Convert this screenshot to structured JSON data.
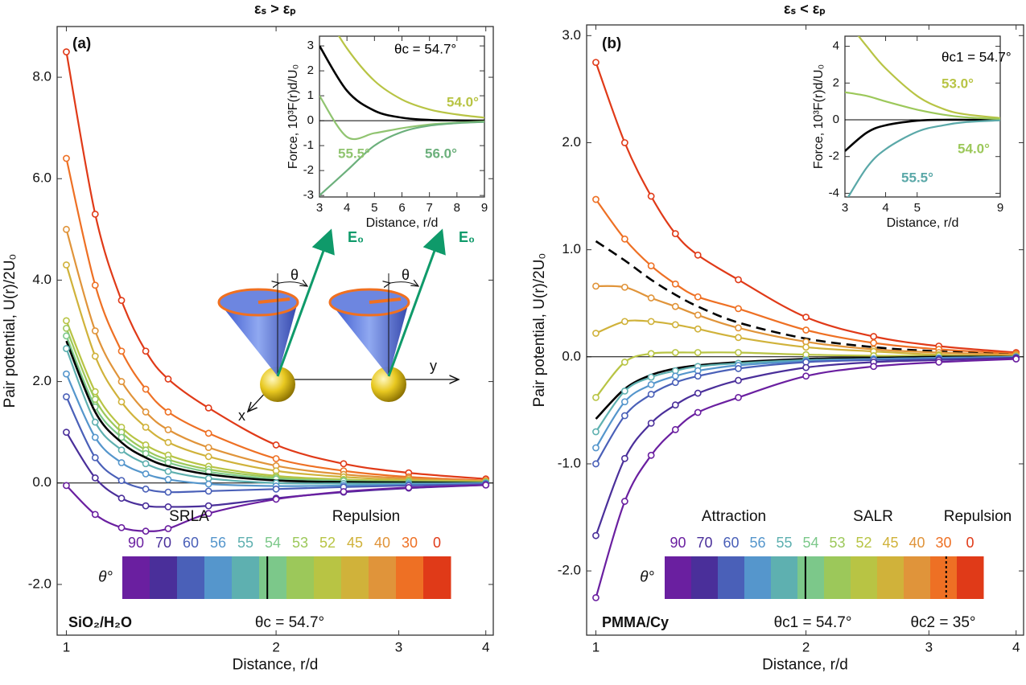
{
  "chart_data": [
    {
      "type": "line",
      "title": "εₛ > εₚ",
      "panel": "(a)",
      "xlabel": "Distance, r/d",
      "ylabel": "Pair potential, U(r)/2U₀",
      "xscale": "log",
      "xlim": [
        0.97,
        4.1
      ],
      "xticks": [
        1,
        2,
        3,
        4
      ],
      "ylim": [
        -3,
        9
      ],
      "yticks": [
        {
          "value": -2,
          "label": "-2.0"
        },
        {
          "value": 0,
          "label": "0.0"
        },
        {
          "value": 2,
          "label": "2.0"
        },
        {
          "value": 4,
          "label": "4.0"
        },
        {
          "value": 6,
          "label": "6.0"
        },
        {
          "value": 8,
          "label": "8.0"
        }
      ],
      "zero_line": true,
      "x": [
        1,
        1.1,
        1.2,
        1.3,
        1.4,
        1.6,
        2,
        2.5,
        3.1,
        4
      ],
      "series": [
        {
          "color": "#e03a18",
          "marker": true,
          "values": [
            8.5,
            5.3,
            3.6,
            2.6,
            2.05,
            1.48,
            0.75,
            0.38,
            0.2,
            0.08
          ]
        },
        {
          "color": "#ee7024",
          "marker": true,
          "values": [
            6.4,
            3.9,
            2.6,
            1.85,
            1.4,
            0.98,
            0.48,
            0.24,
            0.12,
            0.05
          ]
        },
        {
          "color": "#e0943a",
          "marker": true,
          "values": [
            5.0,
            3.0,
            2.0,
            1.4,
            1.05,
            0.7,
            0.34,
            0.17,
            0.09,
            0.04
          ]
        },
        {
          "color": "#d0b23a",
          "marker": true,
          "values": [
            4.3,
            2.5,
            1.6,
            1.1,
            0.8,
            0.52,
            0.24,
            0.12,
            0.06,
            0.03
          ]
        },
        {
          "color": "#b8c444",
          "marker": true,
          "values": [
            3.2,
            1.8,
            1.1,
            0.75,
            0.55,
            0.33,
            0.14,
            0.07,
            0.04,
            0.02
          ]
        },
        {
          "color": "#9cc85a",
          "marker": true,
          "values": [
            3.05,
            1.65,
            1.0,
            0.65,
            0.46,
            0.27,
            0.11,
            0.05,
            0.03,
            0.01
          ]
        },
        {
          "color": "#7cc88a",
          "marker": true,
          "values": [
            2.9,
            1.5,
            0.9,
            0.58,
            0.4,
            0.22,
            0.08,
            0.04,
            0.02,
            0.01
          ]
        },
        {
          "color": "#000000",
          "marker": false,
          "values": [
            2.8,
            1.4,
            0.8,
            0.5,
            0.33,
            0.17,
            0.05,
            0.02,
            0.01,
            0
          ]
        },
        {
          "color": "#5eb0b0",
          "marker": true,
          "values": [
            2.65,
            1.2,
            0.65,
            0.38,
            0.23,
            0.09,
            0.0,
            -0.01,
            -0.01,
            0
          ]
        },
        {
          "color": "#5596cc",
          "marker": true,
          "values": [
            2.15,
            0.9,
            0.4,
            0.18,
            0.07,
            -0.02,
            -0.06,
            -0.05,
            -0.03,
            -0.01
          ]
        },
        {
          "color": "#4a60b8",
          "marker": true,
          "values": [
            1.7,
            0.5,
            0.05,
            -0.12,
            -0.18,
            -0.16,
            -0.12,
            -0.08,
            -0.05,
            -0.02
          ]
        },
        {
          "color": "#4a2f9a",
          "marker": true,
          "values": [
            1.0,
            0.1,
            -0.3,
            -0.45,
            -0.47,
            -0.45,
            -0.3,
            -0.18,
            -0.1,
            -0.04
          ]
        },
        {
          "color": "#6a1fa0",
          "marker": true,
          "values": [
            -0.05,
            -0.62,
            -0.88,
            -0.95,
            -0.9,
            -0.6,
            -0.32,
            -0.17,
            -0.09,
            -0.04
          ]
        }
      ],
      "inset": {
        "type": "line",
        "xlabel": "Distance, r/d",
        "ylabel": "Force, 10³F(r)d/U₀",
        "xscale": "linear",
        "xlim": [
          3,
          9
        ],
        "xticks": [
          3,
          4,
          5,
          6,
          7,
          8,
          9
        ],
        "ylim": [
          -3.06,
          3.39
        ],
        "yticks": [
          -3,
          -2,
          -1,
          0,
          1,
          2,
          3
        ],
        "zero_line": true,
        "x": [
          3,
          4,
          5,
          6,
          7,
          8,
          9
        ],
        "series": [
          {
            "name": "θc = 54.7°",
            "color": "#000000",
            "values": [
              3.0,
              1.2,
              0.4,
              0.12,
              0.03,
              0.01,
              0
            ]
          },
          {
            "name": "54.0°",
            "color": "#b8c444",
            "values": [
              4.7,
              2.9,
              1.6,
              0.85,
              0.45,
              0.25,
              0.12
            ]
          },
          {
            "name": "55.5°",
            "color": "#90c470",
            "values": [
              1.0,
              -0.65,
              -0.5,
              -0.3,
              -0.15,
              -0.08,
              -0.03
            ]
          },
          {
            "name": "56.0°",
            "color": "#6cb07c",
            "values": [
              -3.0,
              -2.0,
              -1.0,
              -0.45,
              -0.2,
              -0.1,
              -0.05
            ]
          }
        ]
      },
      "colorbar": {
        "symbol": "θ°",
        "labels": [
          "90",
          "70",
          "60",
          "56",
          "55",
          "54",
          "53",
          "52",
          "45",
          "40",
          "30",
          "0"
        ],
        "colors": [
          "#6a1fa0",
          "#4a2f9a",
          "#4a60b8",
          "#5596cc",
          "#5eb0b0",
          "#7cc88a",
          "#9cc85a",
          "#b8c444",
          "#d0b23a",
          "#e0943a",
          "#ee7024",
          "#e03a18"
        ],
        "regions": [
          "SRLA",
          "Repulsion"
        ],
        "critical": [
          "θc = 54.7°"
        ]
      },
      "material": "SiO₂/H₂O",
      "annotations": [
        "θ",
        "E₀",
        "θ",
        "E₀",
        "y",
        "x"
      ]
    },
    {
      "type": "line",
      "title": "εₛ < εₚ",
      "panel": "(b)",
      "xlabel": "Distance, r/d",
      "ylabel": "Pair potential, U(r)/2U₀",
      "xscale": "log",
      "xlim": [
        0.97,
        4.1
      ],
      "xticks": [
        1,
        2,
        3,
        4
      ],
      "ylim": [
        -2.6,
        3.1
      ],
      "yticks": [
        {
          "value": -2,
          "label": "-2.0"
        },
        {
          "value": -1,
          "label": "-1.0"
        },
        {
          "value": 0,
          "label": "0.0"
        },
        {
          "value": 1,
          "label": "1.0"
        },
        {
          "value": 2,
          "label": "2.0"
        },
        {
          "value": 3,
          "label": "3.0"
        }
      ],
      "zero_line": true,
      "x": [
        1,
        1.1,
        1.2,
        1.3,
        1.4,
        1.6,
        2,
        2.5,
        3.1,
        4
      ],
      "series": [
        {
          "color": "#e03a18",
          "marker": true,
          "values": [
            2.75,
            2.0,
            1.5,
            1.15,
            0.95,
            0.72,
            0.37,
            0.19,
            0.1,
            0.04
          ]
        },
        {
          "color": "#ee7024",
          "marker": true,
          "values": [
            1.47,
            1.1,
            0.85,
            0.68,
            0.56,
            0.45,
            0.25,
            0.13,
            0.07,
            0.03
          ]
        },
        {
          "color": "#000000",
          "marker": false,
          "dash": true,
          "values": [
            1.08,
            0.9,
            0.72,
            0.58,
            0.47,
            0.32,
            0.17,
            0.09,
            0.05,
            0.02
          ]
        },
        {
          "color": "#e0943a",
          "marker": true,
          "values": [
            0.66,
            0.65,
            0.55,
            0.47,
            0.39,
            0.27,
            0.14,
            0.07,
            0.04,
            0.02
          ]
        },
        {
          "color": "#d0b23a",
          "marker": true,
          "values": [
            0.22,
            0.33,
            0.33,
            0.3,
            0.26,
            0.18,
            0.09,
            0.05,
            0.02,
            0.01
          ]
        },
        {
          "color": "#b8c444",
          "marker": true,
          "values": [
            -0.38,
            -0.05,
            0.03,
            0.04,
            0.04,
            0.04,
            0.02,
            0.01,
            0.01,
            0
          ]
        },
        {
          "color": "#000000",
          "marker": false,
          "values": [
            -0.58,
            -0.3,
            -0.17,
            -0.11,
            -0.08,
            -0.05,
            -0.02,
            -0.01,
            0,
            0
          ]
        },
        {
          "color": "#5eb0b0",
          "marker": true,
          "values": [
            -0.7,
            -0.32,
            -0.19,
            -0.13,
            -0.09,
            -0.06,
            -0.03,
            -0.02,
            -0.01,
            0
          ]
        },
        {
          "color": "#5596cc",
          "marker": true,
          "values": [
            -0.85,
            -0.42,
            -0.26,
            -0.18,
            -0.13,
            -0.08,
            -0.04,
            -0.02,
            -0.01,
            0
          ]
        },
        {
          "color": "#4a60b8",
          "marker": true,
          "values": [
            -1.0,
            -0.55,
            -0.35,
            -0.24,
            -0.18,
            -0.11,
            -0.05,
            -0.03,
            -0.02,
            -0.01
          ]
        },
        {
          "color": "#4a2f9a",
          "marker": true,
          "values": [
            -1.67,
            -0.95,
            -0.62,
            -0.45,
            -0.34,
            -0.22,
            -0.1,
            -0.05,
            -0.03,
            -0.01
          ]
        },
        {
          "color": "#6a1fa0",
          "marker": true,
          "values": [
            -2.25,
            -1.35,
            -0.92,
            -0.68,
            -0.52,
            -0.38,
            -0.18,
            -0.09,
            -0.05,
            -0.02
          ]
        }
      ],
      "inset": {
        "type": "line",
        "xlabel": "Distance, r/d",
        "ylabel": "Force, 10³F(r)d/U₀",
        "xscale": "log",
        "xlim": [
          3,
          9
        ],
        "xticks": [
          3,
          4,
          5,
          9
        ],
        "ylim": [
          -4.2,
          4.55
        ],
        "yticks": [
          -4,
          -2,
          0,
          2,
          4
        ],
        "zero_line": true,
        "x": [
          3,
          3.5,
          4,
          5,
          6,
          7,
          9
        ],
        "series": [
          {
            "name": "θc1 = 54.7°",
            "color": "#000000",
            "values": [
              -1.7,
              -0.7,
              -0.3,
              -0.05,
              0,
              0,
              0
            ]
          },
          {
            "name": "53.0°",
            "color": "#b8c444",
            "values": [
              5.5,
              4.0,
              2.8,
              1.3,
              0.6,
              0.3,
              0.1
            ]
          },
          {
            "name": "54.0°",
            "color": "#9cc85a",
            "values": [
              1.5,
              1.3,
              1.0,
              0.55,
              0.28,
              0.14,
              0.04
            ]
          },
          {
            "name": "55.5°",
            "color": "#5aa8a8",
            "values": [
              -4.5,
              -2.6,
              -1.6,
              -0.65,
              -0.3,
              -0.13,
              -0.03
            ]
          }
        ]
      },
      "colorbar": {
        "symbol": "θ°",
        "labels": [
          "90",
          "70",
          "60",
          "56",
          "55",
          "54",
          "53",
          "52",
          "45",
          "40",
          "30",
          "0"
        ],
        "colors": [
          "#6a1fa0",
          "#4a2f9a",
          "#4a60b8",
          "#5596cc",
          "#5eb0b0",
          "#7cc88a",
          "#9cc85a",
          "#b8c444",
          "#d0b23a",
          "#e0943a",
          "#ee7024",
          "#e03a18"
        ],
        "regions": [
          "Attraction",
          "SALR",
          "Repulsion"
        ],
        "critical": [
          "θc1 = 54.7°",
          "θc2 = 35°"
        ]
      },
      "material": "PMMA/Cy"
    }
  ]
}
